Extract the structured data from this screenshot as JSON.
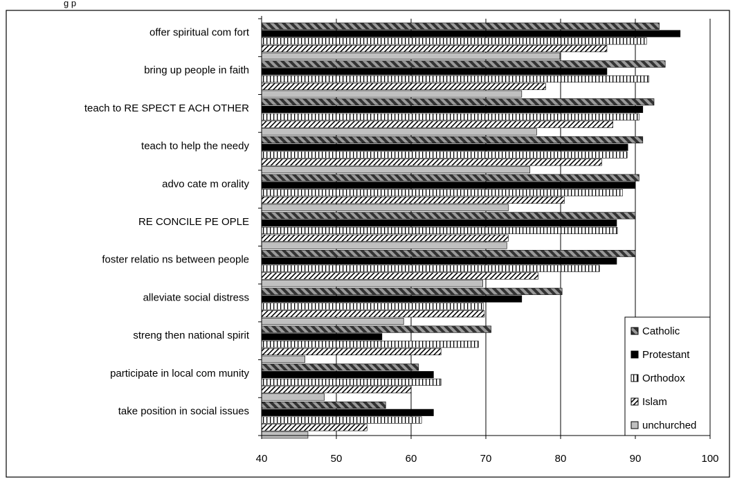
{
  "header_fragment": "g       p",
  "chart_data": {
    "type": "bar",
    "orientation": "horizontal",
    "title": "",
    "xlabel": "",
    "ylabel": "",
    "xlim": [
      40,
      100
    ],
    "x_ticks": [
      "40",
      "50",
      "60",
      "70",
      "80",
      "90",
      "100"
    ],
    "grid": "vertical",
    "legend_position": "bottom-right",
    "categories": [
      "offer spiritual com fort",
      "bring up people in faith",
      "teach to RE SPECT E ACH OTHER",
      "teach to help the needy",
      "advo cate m orality",
      "RE CONCILE PE OPLE",
      "foster relatio ns between people",
      "alleviate social distress",
      "streng then national spirit",
      "participate in local com munity",
      "take position in social issues"
    ],
    "series": [
      {
        "name": "Catholic",
        "pattern": "diag-dark",
        "values": [
          93.2,
          94.0,
          92.5,
          91.0,
          90.5,
          90.0,
          90.0,
          80.2,
          70.7,
          61.0,
          56.6
        ]
      },
      {
        "name": "Protestant",
        "pattern": "solid-black",
        "values": [
          96.0,
          86.2,
          91.0,
          89.0,
          90.0,
          87.5,
          87.5,
          74.8,
          56.1,
          63.0,
          63.0
        ]
      },
      {
        "name": "Orthodox",
        "pattern": "vertical",
        "values": [
          91.5,
          91.8,
          90.5,
          88.9,
          88.3,
          87.6,
          85.2,
          69.7,
          69.0,
          64.0,
          61.4
        ]
      },
      {
        "name": "Islam",
        "pattern": "diag-light",
        "values": [
          86.2,
          78.0,
          87.0,
          85.5,
          80.5,
          73.0,
          77.0,
          69.8,
          64.0,
          60.0,
          54.1
        ]
      },
      {
        "name": "unchurched",
        "pattern": "gray",
        "values": [
          79.9,
          74.8,
          76.8,
          75.9,
          73.0,
          72.8,
          69.6,
          59.0,
          45.8,
          48.4,
          46.2
        ]
      }
    ]
  },
  "colors": {
    "catholic_dark": "#3a3a3a",
    "catholic_light": "#9a9a9a",
    "protestant": "#000000",
    "unchurched": "#c0c0c0",
    "frame": "#000000"
  }
}
